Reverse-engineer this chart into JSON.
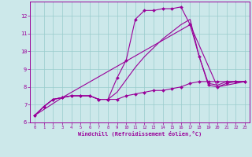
{
  "xlabel": "Windchill (Refroidissement éolien,°C)",
  "bg_color": "#cce8ea",
  "line_color": "#990099",
  "grid_color": "#99cccc",
  "xlim": [
    -0.5,
    23.5
  ],
  "ylim": [
    6,
    12.8
  ],
  "yticks": [
    6,
    7,
    8,
    9,
    10,
    11,
    12
  ],
  "xticks": [
    0,
    1,
    2,
    3,
    4,
    5,
    6,
    7,
    8,
    9,
    10,
    11,
    12,
    13,
    14,
    15,
    16,
    17,
    18,
    19,
    20,
    21,
    22,
    23
  ],
  "lines": [
    {
      "x": [
        0,
        1,
        2,
        3,
        4,
        5,
        6,
        7,
        8,
        9,
        10,
        11,
        12,
        13,
        14,
        15,
        16,
        17,
        18,
        19,
        20,
        21,
        22,
        23
      ],
      "y": [
        6.4,
        6.9,
        7.3,
        7.4,
        7.5,
        7.5,
        7.5,
        7.3,
        7.3,
        8.5,
        9.5,
        11.8,
        12.3,
        12.3,
        12.4,
        12.4,
        12.5,
        11.5,
        9.7,
        8.1,
        8.0,
        8.2,
        8.3,
        8.3
      ],
      "marker": "D",
      "markersize": 2.0,
      "linewidth": 0.8
    },
    {
      "x": [
        0,
        1,
        2,
        3,
        4,
        5,
        6,
        7,
        8,
        9,
        10,
        11,
        12,
        13,
        14,
        15,
        16,
        17,
        18,
        19,
        20,
        21,
        22,
        23
      ],
      "y": [
        6.4,
        6.9,
        7.3,
        7.4,
        7.5,
        7.5,
        7.5,
        7.3,
        7.3,
        7.3,
        7.5,
        7.6,
        7.7,
        7.8,
        7.8,
        7.9,
        8.0,
        8.2,
        8.3,
        8.3,
        8.3,
        8.3,
        8.3,
        8.3
      ],
      "marker": "D",
      "markersize": 2.0,
      "linewidth": 0.8
    },
    {
      "x": [
        0,
        1,
        2,
        3,
        4,
        5,
        6,
        7,
        8,
        9,
        10,
        11,
        12,
        13,
        14,
        15,
        16,
        17,
        18,
        19,
        20,
        21,
        22,
        23
      ],
      "y": [
        6.4,
        6.9,
        7.3,
        7.4,
        7.5,
        7.5,
        7.5,
        7.3,
        7.3,
        7.7,
        8.4,
        9.1,
        9.7,
        10.2,
        10.7,
        11.1,
        11.5,
        11.8,
        9.7,
        8.2,
        8.1,
        8.3,
        8.3,
        8.3
      ],
      "marker": null,
      "markersize": 0,
      "linewidth": 0.8
    },
    {
      "x": [
        0,
        3,
        17,
        20,
        23
      ],
      "y": [
        6.4,
        7.4,
        11.5,
        8.0,
        8.3
      ],
      "marker": null,
      "markersize": 0,
      "linewidth": 0.8
    }
  ]
}
